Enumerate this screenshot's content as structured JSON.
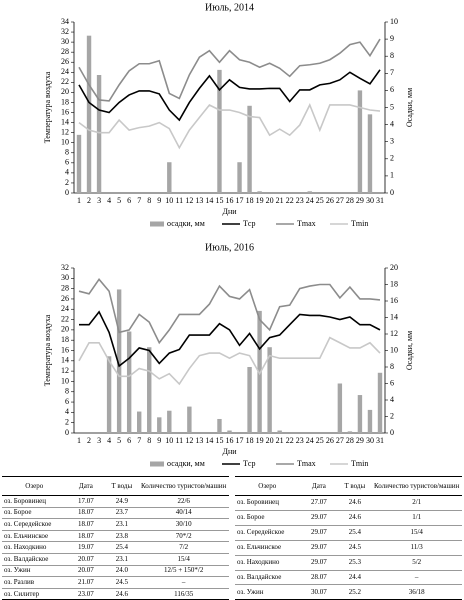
{
  "chart_data": [
    {
      "type": "combo",
      "title": "Июль, 2014",
      "xlabel": "Дни",
      "ylabel": "Температура воздуха",
      "y2label": "Осадки, мм",
      "categories": [
        1,
        2,
        3,
        4,
        5,
        6,
        7,
        8,
        9,
        10,
        11,
        12,
        13,
        14,
        15,
        16,
        17,
        18,
        19,
        20,
        21,
        22,
        23,
        24,
        25,
        26,
        27,
        28,
        29,
        30,
        31
      ],
      "ylim": [
        0,
        34
      ],
      "yticks": [
        0,
        2,
        4,
        6,
        8,
        10,
        12,
        14,
        16,
        18,
        20,
        22,
        24,
        26,
        28,
        30,
        32,
        34
      ],
      "y2lim": [
        0,
        10
      ],
      "y2ticks": [
        0,
        1,
        2,
        3,
        4,
        5,
        6,
        7,
        8,
        9,
        10
      ],
      "series": [
        {
          "name": "осадки, мм",
          "type": "bar",
          "axis": "y2",
          "color": "#a6a6a6",
          "values": [
            3.4,
            9.2,
            6.9,
            0,
            0,
            0,
            0,
            0,
            0,
            1.8,
            0,
            0,
            0,
            0,
            7.2,
            0,
            1.8,
            5.1,
            0.1,
            0,
            0,
            0,
            0,
            0.1,
            0,
            0,
            0,
            0,
            6.0,
            4.6,
            0
          ]
        },
        {
          "name": "Tср",
          "type": "line",
          "color": "#000000",
          "values": [
            21.5,
            18,
            16.5,
            16,
            18,
            19.5,
            20.3,
            20.3,
            19.7,
            16.5,
            14.5,
            18,
            20.8,
            23.3,
            20.5,
            22.5,
            21,
            20.7,
            20.7,
            20.8,
            20.8,
            18.2,
            20.5,
            20.5,
            21.5,
            21.8,
            22.5,
            24,
            22.8,
            21.7,
            24.5
          ]
        },
        {
          "name": "Tmax",
          "type": "line",
          "color": "#8c8c8c",
          "values": [
            25,
            21.5,
            18.5,
            18.3,
            21.5,
            24.3,
            25.7,
            25.7,
            26.3,
            19.8,
            18.8,
            23.5,
            27,
            28.3,
            26,
            28.3,
            26.5,
            26,
            25,
            25.8,
            24.8,
            23.2,
            25.3,
            25.5,
            25.8,
            26.5,
            27.8,
            29.5,
            30,
            27.3,
            30.6
          ]
        },
        {
          "name": "Tmin",
          "type": "line",
          "color": "#c8c8c8",
          "values": [
            14,
            12.5,
            12,
            12,
            14.5,
            12.5,
            13,
            13.3,
            14,
            12.8,
            9,
            12.5,
            15,
            17.5,
            16.5,
            16.5,
            16,
            15.2,
            15,
            11.5,
            12.7,
            11.5,
            13.5,
            17.5,
            12.5,
            17.5,
            17.5,
            17.5,
            17,
            16.5,
            16.3
          ]
        }
      ]
    },
    {
      "type": "combo",
      "title": "Июль, 2016",
      "xlabel": "Дни",
      "ylabel": "Температура воздуха",
      "y2label": "Осадки, мм",
      "categories": [
        1,
        2,
        3,
        4,
        5,
        6,
        7,
        8,
        9,
        10,
        11,
        12,
        13,
        14,
        15,
        16,
        17,
        18,
        19,
        20,
        21,
        22,
        23,
        24,
        25,
        26,
        27,
        28,
        29,
        30,
        31
      ],
      "ylim": [
        0,
        32
      ],
      "yticks": [
        0,
        2,
        4,
        6,
        8,
        10,
        12,
        14,
        16,
        18,
        20,
        22,
        24,
        26,
        28,
        30,
        32
      ],
      "y2lim": [
        0,
        20
      ],
      "y2ticks": [
        0,
        2,
        4,
        6,
        8,
        10,
        12,
        14,
        16,
        18,
        20
      ],
      "series": [
        {
          "name": "осадки, мм",
          "type": "bar",
          "axis": "y2",
          "color": "#a6a6a6",
          "values": [
            0,
            0,
            0,
            9.3,
            17.4,
            12.3,
            2.6,
            10.4,
            1.9,
            2.7,
            0,
            3.2,
            0,
            0,
            1.7,
            0.3,
            0,
            8,
            14.8,
            10.4,
            0.3,
            0,
            0,
            0,
            0,
            0,
            6,
            0.2,
            4.6,
            2.8,
            7.3
          ]
        },
        {
          "name": "Tср",
          "type": "line",
          "color": "#000000",
          "values": [
            21,
            21,
            23.5,
            19.5,
            13,
            14.5,
            16.5,
            16,
            13.5,
            15.5,
            16.2,
            19,
            19,
            19,
            21.2,
            20,
            17,
            19.3,
            16.3,
            18.5,
            19,
            21,
            23,
            22.8,
            22.8,
            22.5,
            22,
            22.5,
            21,
            21,
            20
          ]
        },
        {
          "name": "Tmax",
          "type": "line",
          "color": "#8c8c8c",
          "values": [
            27.5,
            27,
            29.8,
            27.5,
            19.5,
            20,
            23,
            21.5,
            17.5,
            20,
            23,
            23,
            23,
            25,
            28.5,
            26.5,
            26,
            27.8,
            22,
            20,
            24.5,
            24.8,
            28,
            28.5,
            28.8,
            28.8,
            26.2,
            28.3,
            26,
            26,
            25.8
          ]
        },
        {
          "name": "Tmin",
          "type": "line",
          "color": "#c8c8c8",
          "values": [
            14,
            17.5,
            17.5,
            14,
            11,
            11,
            12.5,
            12,
            10.5,
            11.5,
            9.5,
            12.5,
            15,
            15.5,
            15.5,
            14.5,
            15.5,
            15,
            11.5,
            15,
            14.5,
            14.5,
            14.5,
            14.5,
            14.5,
            18.5,
            17.5,
            16.5,
            16.5,
            17.5,
            15.5
          ]
        }
      ]
    }
  ],
  "table": {
    "header": [
      "Озеро",
      "Дата",
      "T воды",
      "Количество туристов/машин"
    ],
    "left": [
      [
        "оз. Боровинец",
        "17.07",
        "24.9",
        "22/6"
      ],
      [
        "оз. Борое",
        "18.07",
        "23.7",
        "40/14"
      ],
      [
        "оз. Середейское",
        "18.07",
        "23.1",
        "30/10"
      ],
      [
        "оз. Ельчинское",
        "18.07",
        "23.8",
        "70*/2"
      ],
      [
        "оз. Находкино",
        "19.07",
        "25.4",
        "7/2"
      ],
      [
        "оз. Валдайское",
        "20.07",
        "23.1",
        "15/4"
      ],
      [
        "оз. Ужин",
        "20.07",
        "24.0",
        "12/5 + 150*/2"
      ],
      [
        "оз. Разлив",
        "21.07",
        "24.5",
        "–"
      ],
      [
        "оз. Силитер",
        "23.07",
        "24.6",
        "116/35"
      ]
    ],
    "right": [
      [
        "оз. Боровинец",
        "27.07",
        "24.6",
        "2/1"
      ],
      [
        "оз. Борое",
        "29.07",
        "24.6",
        "1/1"
      ],
      [
        "оз. Середейское",
        "29.07",
        "25.4",
        "15/4"
      ],
      [
        "оз. Ельчинское",
        "29.07",
        "24.5",
        "11/3"
      ],
      [
        "оз. Находкино",
        "29.07",
        "25.3",
        "5/2"
      ],
      [
        "оз. Валдайское",
        "28.07",
        "24.4",
        "–"
      ],
      [
        "оз. Ужин",
        "30.07",
        "25.2",
        "36/18"
      ]
    ]
  }
}
